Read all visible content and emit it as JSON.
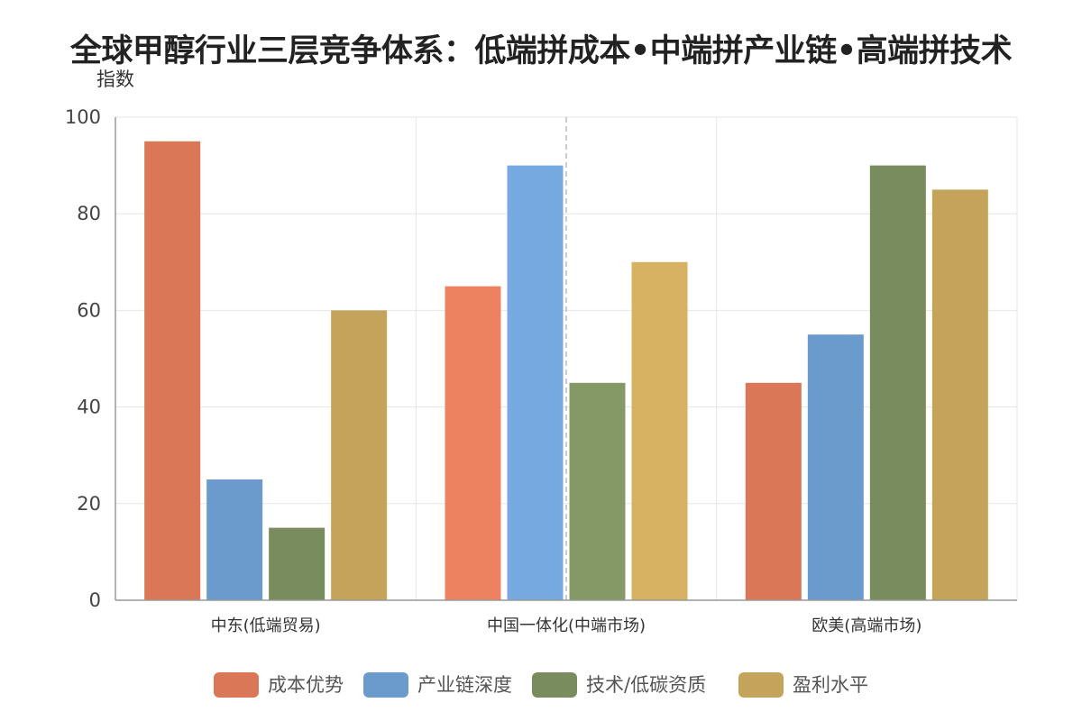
{
  "chart_data": {
    "type": "bar",
    "title": "全球甲醇行业三层竞争体系：低端拼成本•中端拼产业链•高端拼技术",
    "xlabel": "",
    "ylabel": "指数",
    "ylim": [
      0,
      100
    ],
    "yticks": [
      0,
      20,
      40,
      60,
      80,
      100
    ],
    "grid": true,
    "legend_position": "bottom",
    "categories": [
      "中东(低端贸易)",
      "中国一体化(中端市场)",
      "欧美(高端市场)"
    ],
    "series": [
      {
        "name": "成本优势",
        "values": [
          95,
          65,
          45
        ],
        "color": "#D97757",
        "highlight_color": "#EC825F"
      },
      {
        "name": "产业链深度",
        "values": [
          25,
          90,
          55
        ],
        "color": "#6A9BCC",
        "highlight_color": "#76A9E0"
      },
      {
        "name": "技术/低碳资质",
        "values": [
          15,
          45,
          90
        ],
        "color": "#788C5D",
        "highlight_color": "#849966"
      },
      {
        "name": "盈利水平",
        "values": [
          60,
          70,
          85
        ],
        "color": "#C4A35A",
        "highlight_color": "#D8B263"
      }
    ],
    "highlight_category_index": 1
  }
}
